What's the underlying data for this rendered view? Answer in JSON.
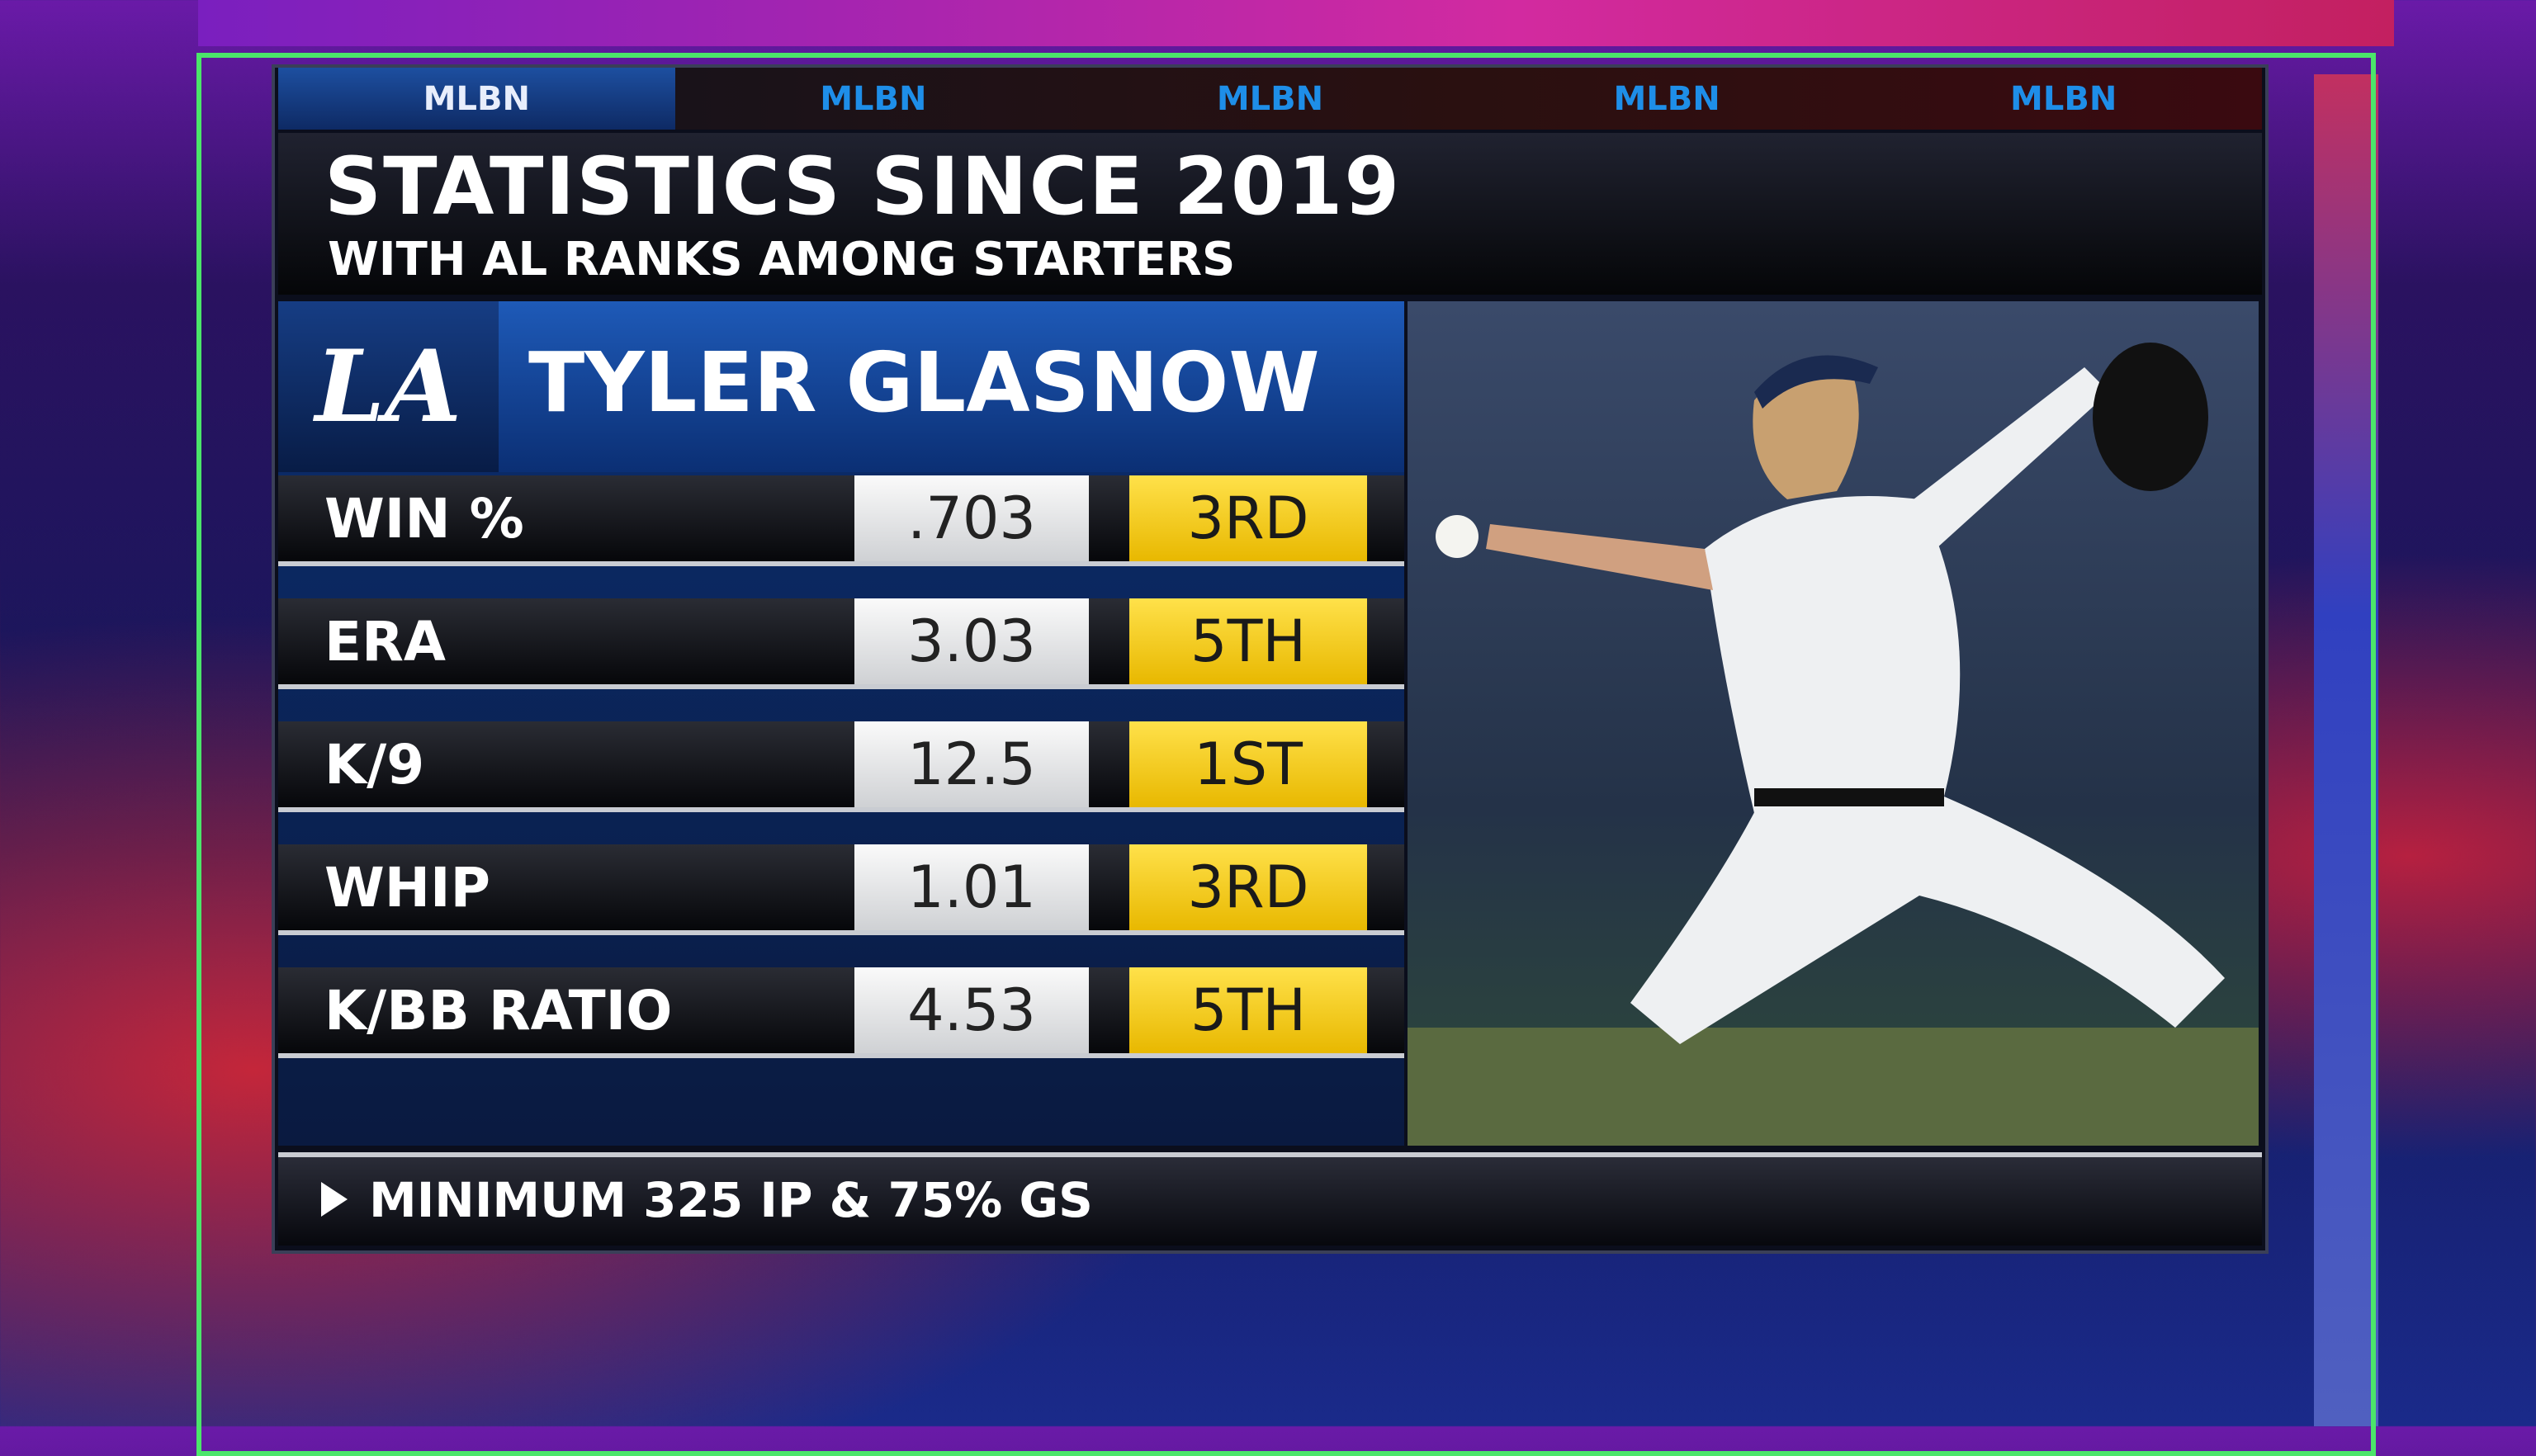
{
  "tabs": [
    "MLBN",
    "MLBN",
    "MLBN",
    "MLBN",
    "MLBN"
  ],
  "header": {
    "title": "STATISTICS SINCE 2019",
    "subtitle": "WITH AL RANKS AMONG STARTERS"
  },
  "player": {
    "team_logo": "LA",
    "name": "TYLER GLASNOW"
  },
  "table": {
    "rows": [
      [
        "WIN %",
        ".703",
        "3RD"
      ],
      [
        "ERA",
        "3.03",
        "5TH"
      ],
      [
        "K/9",
        "12.5",
        "1ST"
      ],
      [
        "WHIP",
        "1.01",
        "3RD"
      ],
      [
        "K/BB RATIO",
        "4.53",
        "5TH"
      ]
    ]
  },
  "footnote": "MINIMUM 325 IP & 75% GS"
}
